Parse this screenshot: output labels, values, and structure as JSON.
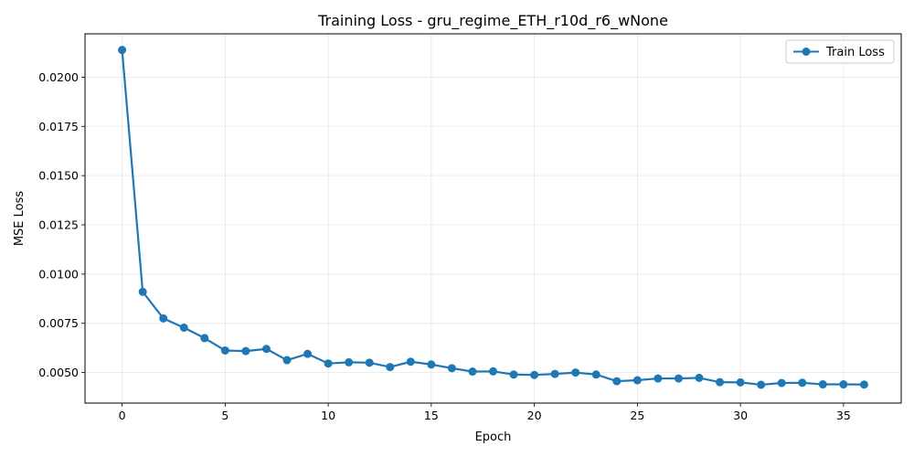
{
  "chart_data": {
    "type": "line",
    "title": "Training Loss - gru_regime_ETH_r10d_r6_wNone",
    "xlabel": "Epoch",
    "ylabel": "MSE Loss",
    "xlim": [
      -1.8,
      37.8
    ],
    "ylim": [
      0.00345,
      0.0222
    ],
    "xticks": [
      0,
      5,
      10,
      15,
      20,
      25,
      30,
      35
    ],
    "yticks": [
      0.005,
      0.0075,
      0.01,
      0.0125,
      0.015,
      0.0175,
      0.02
    ],
    "ytick_labels": [
      "0.0050",
      "0.0075",
      "0.0100",
      "0.0125",
      "0.0150",
      "0.0175",
      "0.0200"
    ],
    "grid": true,
    "legend": "top-right",
    "series": [
      {
        "name": "Train Loss",
        "color": "#1f77b4",
        "marker": "circle",
        "x": [
          0,
          1,
          2,
          3,
          4,
          5,
          6,
          7,
          8,
          9,
          10,
          11,
          12,
          13,
          14,
          15,
          16,
          17,
          18,
          19,
          20,
          21,
          22,
          23,
          24,
          25,
          26,
          27,
          28,
          29,
          30,
          31,
          32,
          33,
          34,
          35,
          36
        ],
        "values": [
          0.02138,
          0.0091,
          0.00775,
          0.00728,
          0.00675,
          0.00612,
          0.00609,
          0.0062,
          0.00563,
          0.00595,
          0.00546,
          0.00552,
          0.0055,
          0.00528,
          0.00555,
          0.00541,
          0.00522,
          0.00505,
          0.00506,
          0.0049,
          0.00488,
          0.00493,
          0.005,
          0.0049,
          0.00456,
          0.00461,
          0.0047,
          0.0047,
          0.00473,
          0.00451,
          0.0045,
          0.00438,
          0.00447,
          0.00448,
          0.0044,
          0.0044,
          0.00439
        ]
      }
    ]
  }
}
